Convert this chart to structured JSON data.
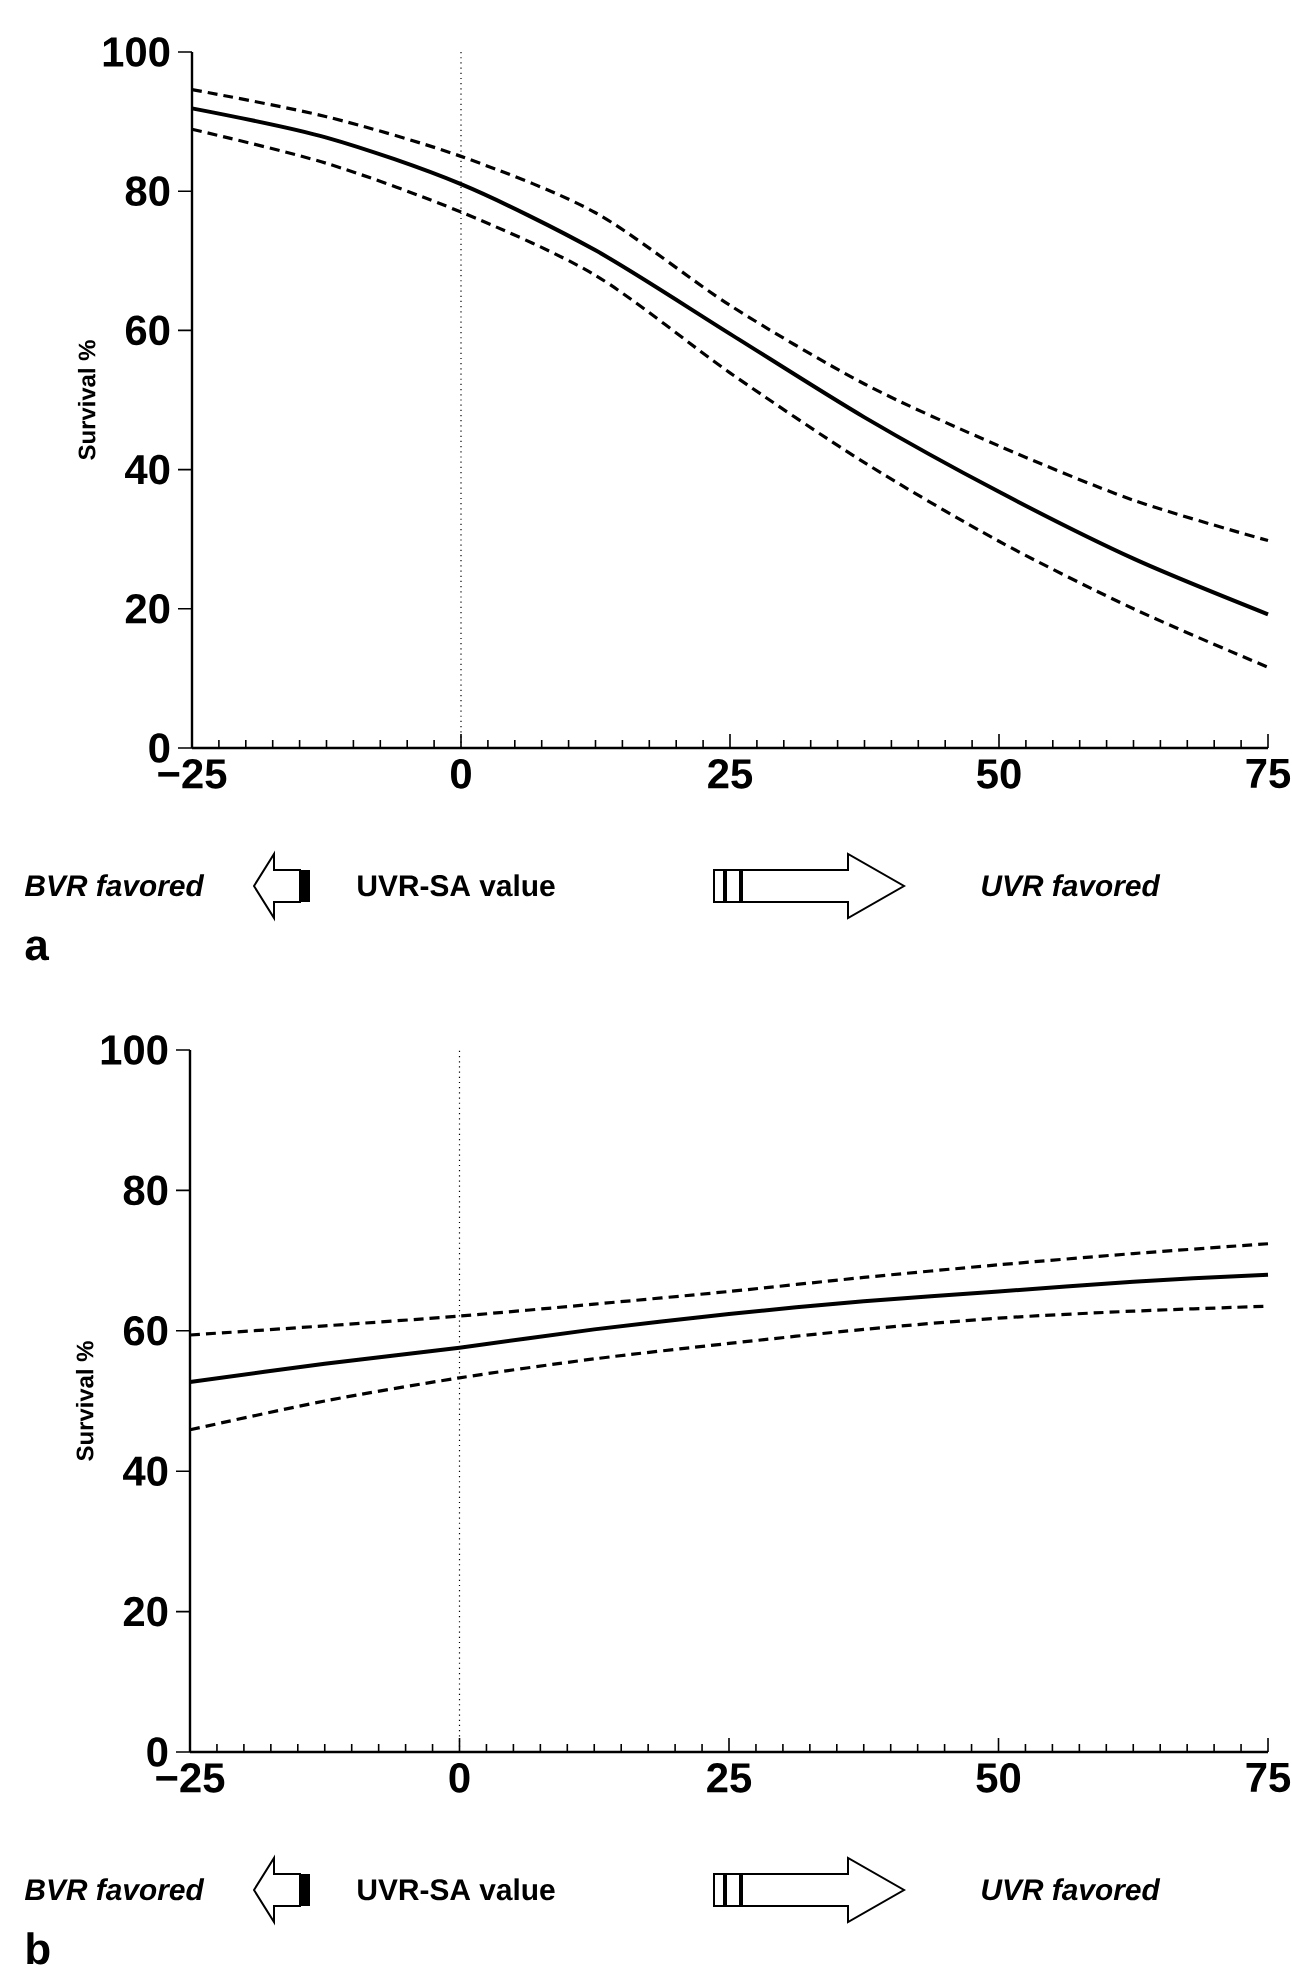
{
  "chart_data": [
    {
      "type": "line",
      "ylabel": "Survival %",
      "x": [
        -25,
        -12.5,
        0,
        12.5,
        25,
        37.5,
        50,
        62.5,
        75
      ],
      "series": [
        {
          "color": "#000000",
          "line_style": "solid",
          "values": [
            91.9,
            87.7,
            81,
            71.5,
            59.5,
            47.5,
            36.8,
            27.2,
            19.2
          ]
        },
        {
          "color": "#000000",
          "line_style": "dashed",
          "values": [
            94.6,
            90.7,
            85,
            76.9,
            63.6,
            52.3,
            43.4,
            35.6,
            29.8
          ]
        },
        {
          "color": "#000000",
          "line_style": "dashed",
          "values": [
            88.9,
            84,
            77,
            67.9,
            53.9,
            41,
            29.7,
            20,
            11.6
          ]
        }
      ],
      "xlim": [
        -25,
        75
      ],
      "ylim": [
        0,
        100
      ],
      "xticks": [
        {
          "value": -25,
          "label": "−25"
        },
        0,
        25,
        50,
        75
      ],
      "yticks": [
        0,
        20,
        40,
        60,
        80,
        100
      ],
      "ref_lines": [
        {
          "axis": "x",
          "value": 0,
          "color": "#000000",
          "line_style": "dotted"
        }
      ],
      "annotations": [
        "BVR favored",
        "UVR-SA value",
        "UVR favored",
        "a"
      ]
    },
    {
      "type": "line",
      "ylabel": "Survival %",
      "x": [
        -25,
        -12.5,
        0,
        12.5,
        25,
        37.5,
        50,
        62.5,
        75
      ],
      "series": [
        {
          "color": "#000000",
          "line_style": "solid",
          "values": [
            52.7,
            55.3,
            57.6,
            60.2,
            62.4,
            64.2,
            65.6,
            67,
            68
          ]
        },
        {
          "color": "#000000",
          "line_style": "dashed",
          "values": [
            59.4,
            60.7,
            62.1,
            63.8,
            65.6,
            67.6,
            69.4,
            71,
            72.4
          ]
        },
        {
          "color": "#000000",
          "line_style": "dashed",
          "values": [
            45.9,
            50,
            53.3,
            56,
            58.2,
            60.2,
            61.8,
            62.8,
            63.5
          ]
        }
      ],
      "xlim": [
        -25,
        75
      ],
      "ylim": [
        0,
        100
      ],
      "xticks": [
        {
          "value": -25,
          "label": "−25"
        },
        0,
        25,
        50,
        75
      ],
      "yticks": [
        0,
        20,
        40,
        60,
        80,
        100
      ],
      "ref_lines": [
        {
          "axis": "x",
          "value": 0,
          "color": "#000000",
          "line_style": "dotted"
        }
      ],
      "annotations": [
        "BVR favored",
        "UVR-SA value",
        "UVR favored",
        "b"
      ]
    }
  ]
}
